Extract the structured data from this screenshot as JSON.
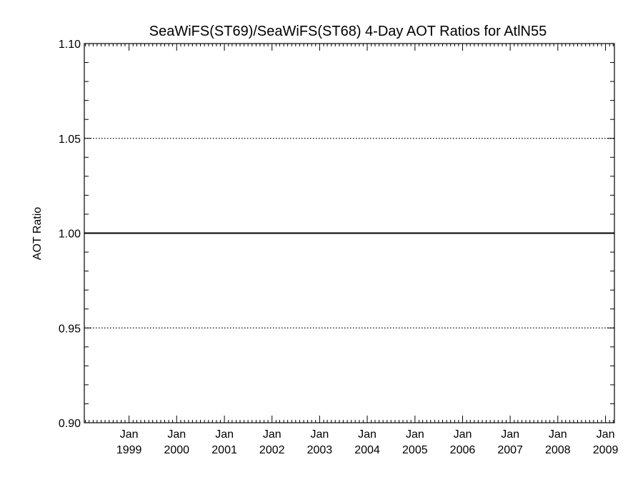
{
  "chart_data": {
    "type": "line",
    "title": "SeaWiFS(ST69)/SeaWiFS(ST68) 4-Day AOT Ratios for AtlN55",
    "xlabel": "",
    "ylabel": "AOT Ratio",
    "x_axis": {
      "type": "date",
      "range": [
        "1998-01-23",
        "2009-03-10"
      ]
    },
    "ylim": [
      0.9,
      1.1
    ],
    "yticks": [
      "0.90",
      "0.95",
      "1.00",
      "1.05",
      "1.10"
    ],
    "xticks": [
      {
        "date": "1999-01-01",
        "month": "Jan",
        "year": "1999"
      },
      {
        "date": "2000-01-01",
        "month": "Jan",
        "year": "2000"
      },
      {
        "date": "2001-01-01",
        "month": "Jan",
        "year": "2001"
      },
      {
        "date": "2002-01-01",
        "month": "Jan",
        "year": "2002"
      },
      {
        "date": "2003-01-01",
        "month": "Jan",
        "year": "2003"
      },
      {
        "date": "2004-01-01",
        "month": "Jan",
        "year": "2004"
      },
      {
        "date": "2005-01-01",
        "month": "Jan",
        "year": "2005"
      },
      {
        "date": "2006-01-01",
        "month": "Jan",
        "year": "2006"
      },
      {
        "date": "2007-01-01",
        "month": "Jan",
        "year": "2007"
      },
      {
        "date": "2008-01-01",
        "month": "Jan",
        "year": "2008"
      },
      {
        "date": "2009-01-01",
        "month": "Jan",
        "year": "2009"
      }
    ],
    "gridlines": {
      "y": [
        0.95,
        1.05
      ],
      "style": "dotted"
    },
    "reference_line": {
      "y": 1.0,
      "style": "solid"
    },
    "series": []
  }
}
